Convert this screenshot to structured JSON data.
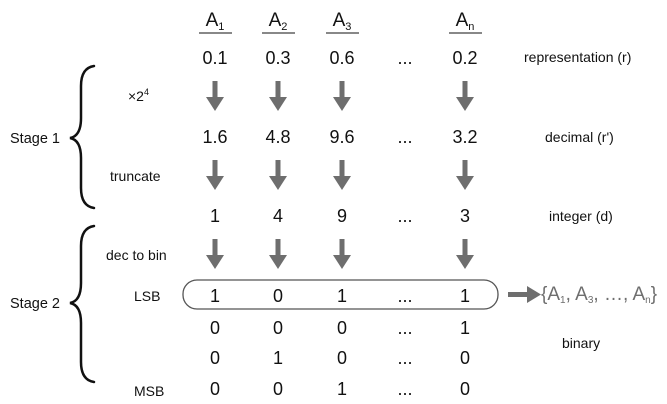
{
  "columns": [
    {
      "name": "A",
      "sub": "1"
    },
    {
      "name": "A",
      "sub": "2"
    },
    {
      "name": "A",
      "sub": "3"
    },
    {
      "name": "",
      "sub": ""
    },
    {
      "name": "A",
      "sub": "n"
    }
  ],
  "rows": {
    "representation": [
      "0.1",
      "0.3",
      "0.6",
      "...",
      "0.2"
    ],
    "decimal": [
      "1.6",
      "4.8",
      "9.6",
      "...",
      "3.2"
    ],
    "integer": [
      "1",
      "4",
      "9",
      "...",
      "3"
    ],
    "bits": [
      [
        "1",
        "0",
        "1",
        "...",
        "1"
      ],
      [
        "0",
        "0",
        "0",
        "...",
        "1"
      ],
      [
        "0",
        "1",
        "0",
        "...",
        "0"
      ],
      [
        "0",
        "0",
        "1",
        "...",
        "0"
      ]
    ]
  },
  "step_labels": {
    "multiply_base": "×2",
    "multiply_exp": "4",
    "truncate": "truncate",
    "dec_to_bin": "dec to bin",
    "lsb": "LSB",
    "msb": "MSB"
  },
  "stage_labels": {
    "stage1": "Stage 1",
    "stage2": "Stage 2"
  },
  "row_labels": {
    "representation": "representation (r)",
    "decimal": "decimal (r')",
    "integer": "integer (d)",
    "binary": "binary"
  },
  "result_set": {
    "open": "{",
    "items": [
      {
        "name": "A",
        "sub": "1",
        "sep": ", "
      },
      {
        "name": "A",
        "sub": "3",
        "sep": ", "
      },
      {
        "name": "…",
        "sub": "",
        "sep": ", "
      },
      {
        "name": "A",
        "sub": "n",
        "sep": ""
      }
    ],
    "close": "}"
  },
  "colors": {
    "arrow": "#6e6e6e",
    "text": "#111111",
    "outline": "#555555"
  }
}
